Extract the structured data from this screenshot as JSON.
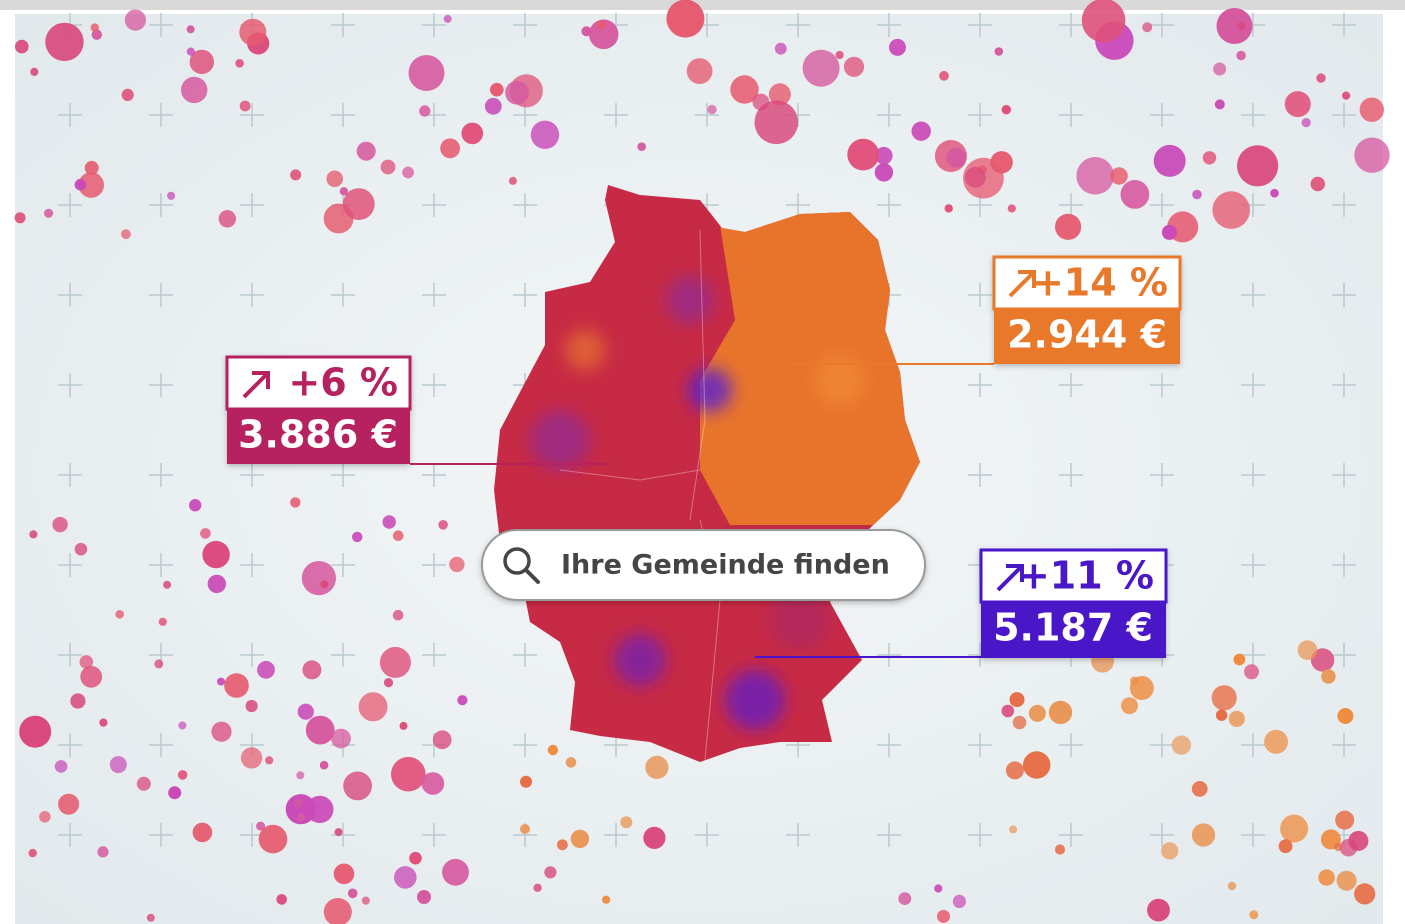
{
  "callouts": [
    {
      "change": "+6 %",
      "amount": "3.886 €"
    },
    {
      "change": "+14 %",
      "amount": "2.944 €"
    },
    {
      "change": "+11 %",
      "amount": "5.187 €"
    }
  ],
  "search": {
    "placeholder": "Ihre Gemeinde finden"
  }
}
